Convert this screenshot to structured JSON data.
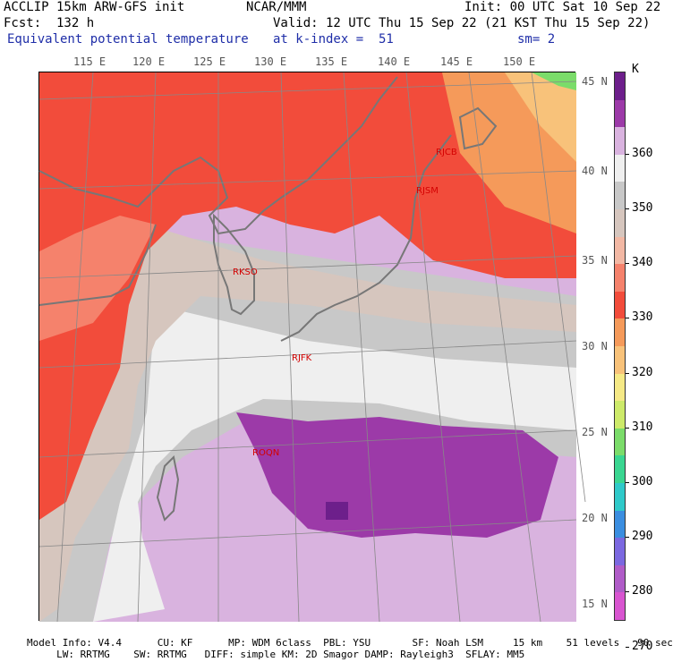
{
  "header": {
    "line1_left": "ACCLIP 15km ARW-GFS init",
    "line1_center": "NCAR/MMM",
    "line1_right": "Init: 00 UTC Sat 10 Sep 22",
    "line2_left": "Fcst:  132 h",
    "line2_right": "Valid: 12 UTC Thu 15 Sep 22 (21 KST Thu 15 Sep 22)",
    "line3_left": "Equivalent potential temperature",
    "line3_center": "at k-index =  51",
    "line3_right": "sm= 2"
  },
  "lon_labels": [
    "115 E",
    "120 E",
    "125 E",
    "130 E",
    "135 E",
    "140 E",
    "145 E",
    "150 E"
  ],
  "lat_labels": [
    "45 N",
    "40 N",
    "35 N",
    "30 N",
    "25 N",
    "20 N",
    "15 N"
  ],
  "stations": [
    "RJCB",
    "RJSM",
    "RKSO",
    "RJFK",
    "ROQN"
  ],
  "colorbar": {
    "unit": "K",
    "tick_labels": [
      "360",
      "350",
      "340",
      "330",
      "320",
      "310",
      "300",
      "290",
      "280",
      "270"
    ],
    "colors": [
      "#6d1f8b",
      "#9c3aa8",
      "#d9b3df",
      "#efefef",
      "#c8c8c8",
      "#d6c6be",
      "#f2b8a4",
      "#f5826c",
      "#f24c3b",
      "#f59a5a",
      "#f8c27a",
      "#f5e986",
      "#cdea6a",
      "#7bdc6a",
      "#3ad691",
      "#2fc9c9",
      "#3b8ee0",
      "#7b68e0",
      "#b05cc8",
      "#d855d0"
    ]
  },
  "footer": {
    "line1": "Model Info: V4.4      CU: KF      MP: WDM 6class  PBL: YSU       SF: Noah LSM     15 km    51 levels   90 sec",
    "line2": "     LW: RRTMG    SW: RRTMG   DIFF: simple KM: 2D Smagor DAMP: Rayleigh3  SFLAY: MM5"
  },
  "colors": {
    "header_blue": "#1f2ea8",
    "station_red": "#d40000",
    "land_outline": "#777777"
  }
}
